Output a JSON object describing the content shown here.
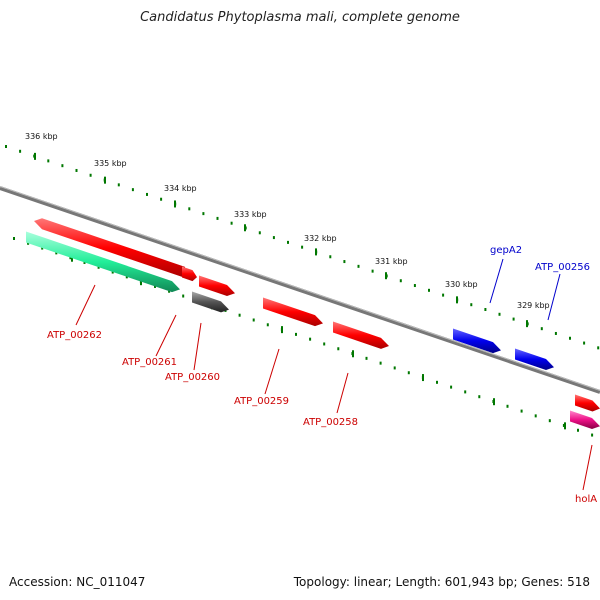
{
  "title": "Candidatus Phytoplasma mali, complete genome",
  "footer": {
    "accession": "Accession: NC_011047",
    "summary": "Topology: linear; Length: 601,943 bp; Genes: 518"
  },
  "colors": {
    "backbone": "#808080",
    "tick": "#007700",
    "forward_gene": "#ff0000",
    "reverse_gene": "#ff0000",
    "gene_label_red": "#cc0000",
    "gene_label_blue": "#0000cc",
    "rna_blue": "#0000ee",
    "teal": "#22ee99",
    "grey_gene": "#555555",
    "magenta": "#ee1188"
  },
  "scale_labels": [
    "336 kbp",
    "335 kbp",
    "334 kbp",
    "333 kbp",
    "332 kbp",
    "331 kbp",
    "330 kbp",
    "329 kbp"
  ],
  "gene_labels": [
    {
      "id": "ATP_00262",
      "name": "ATP_00262",
      "color": "red"
    },
    {
      "id": "ATP_00261",
      "name": "ATP_00261",
      "color": "red"
    },
    {
      "id": "ATP_00260",
      "name": "ATP_00260",
      "color": "red"
    },
    {
      "id": "ATP_00259",
      "name": "ATP_00259",
      "color": "red"
    },
    {
      "id": "ATP_00258",
      "name": "ATP_00258",
      "color": "red"
    },
    {
      "id": "gepA2",
      "name": "gepA2",
      "color": "blue"
    },
    {
      "id": "ATP_00256",
      "name": "ATP_00256",
      "color": "blue"
    },
    {
      "id": "holA",
      "name": "holA",
      "color": "red"
    }
  ]
}
